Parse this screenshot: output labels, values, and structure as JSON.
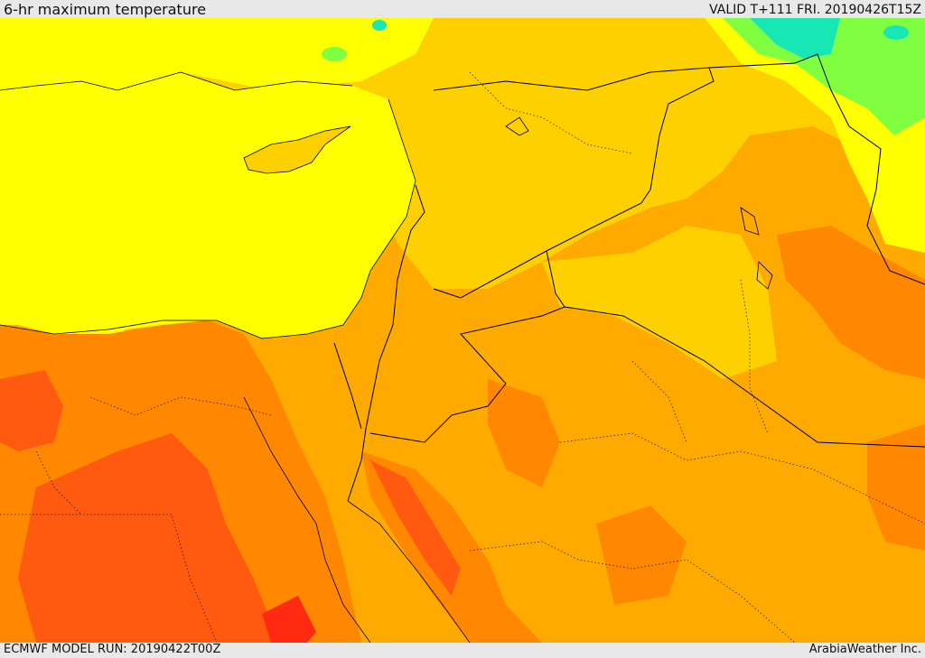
{
  "header": {
    "title": "6-hr maximum temperature",
    "valid": "VALID T+111 FRI. 20190426T15Z"
  },
  "footer": {
    "model_run": "ECMWF MODEL RUN: 20190422T00Z",
    "brand": "ArabiaWeather Inc."
  },
  "colors": {
    "sea": "#ffff00",
    "warm_light": "#ffd000",
    "warm": "#ffaa00",
    "hot": "#ff8800",
    "very_hot": "#ff5a10",
    "extreme": "#ff2a10",
    "cool_green": "#7fff40",
    "cool_cyan": "#18e6b4",
    "border": "#000000"
  }
}
